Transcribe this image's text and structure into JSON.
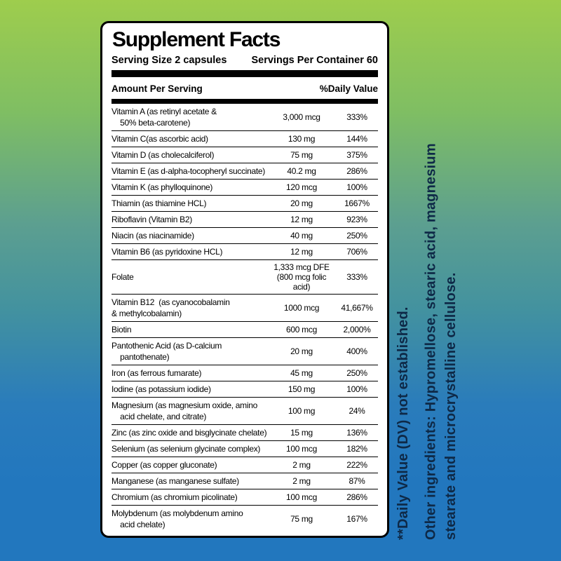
{
  "background": {
    "gradient_top_color": "#9ecd4d",
    "gradient_bottom_color": "#2277be"
  },
  "panel": {
    "title": "Supplement Facts",
    "serving_size": "Serving Size 2 capsules",
    "servings_per_container": "Servings Per Container 60",
    "amount_header": "Amount Per Serving",
    "dv_header": "%Daily Value",
    "rows": [
      {
        "name": "Vitamin A (as retinyl acetate &\n    50% beta-carotene)",
        "amount": "3,000 mcg",
        "dv": "333%"
      },
      {
        "name": "Vitamin C(as ascorbic acid)",
        "amount": "130 mg",
        "dv": "144%"
      },
      {
        "name": "Vitamin D (as cholecalciferol)",
        "amount": "75 mg",
        "dv": "375%"
      },
      {
        "name": "Vitamin E (as d-alpha-tocopheryl succinate)",
        "amount": "40.2 mg",
        "dv": "286%"
      },
      {
        "name": "Vitamin K (as phylloquinone)",
        "amount": "120 mcg",
        "dv": "100%"
      },
      {
        "name": "Thiamin (as thiamine HCL)",
        "amount": "20 mg",
        "dv": "1667%"
      },
      {
        "name": "Riboflavin (Vitamin B2)",
        "amount": "12 mg",
        "dv": "923%"
      },
      {
        "name": "Niacin (as niacinamide)",
        "amount": "40 mg",
        "dv": "250%"
      },
      {
        "name": "Vitamin B6 (as pyridoxine HCL)",
        "amount": "12 mg",
        "dv": "706%"
      },
      {
        "name": "Folate",
        "amount": "1,333 mcg DFE\n(800 mcg folic acid)",
        "dv": "333%"
      },
      {
        "name": "Vitamin B12  (as cyanocobalamin\n& methylcobalamin)",
        "amount": "1000 mcg",
        "dv": "41,667%"
      },
      {
        "name": "Biotin",
        "amount": "600 mcg",
        "dv": "2,000%"
      },
      {
        "name": "Pantothenic Acid (as D-calcium\n    pantothenate)",
        "amount": "20 mg",
        "dv": "400%"
      },
      {
        "name": "Iron (as ferrous fumarate)",
        "amount": "45 mg",
        "dv": "250%"
      },
      {
        "name": "Iodine (as potassium iodide)",
        "amount": "150 mg",
        "dv": "100%"
      },
      {
        "name": "Magnesium (as magnesium oxide, amino\n    acid chelate, and citrate)",
        "amount": "100 mg",
        "dv": "24%"
      },
      {
        "name": "Zinc (as zinc oxide and bisglycinate chelate)",
        "amount": "15 mg",
        "dv": "136%"
      },
      {
        "name": "Selenium (as selenium glycinate complex)",
        "amount": "100 mcg",
        "dv": "182%"
      },
      {
        "name": "Copper (as copper gluconate)",
        "amount": "2 mg",
        "dv": "222%"
      },
      {
        "name": "Manganese (as manganese sulfate)",
        "amount": "2 mg",
        "dv": "87%"
      },
      {
        "name": "Chromium (as chromium picolinate)",
        "amount": "100 mcg",
        "dv": "286%"
      },
      {
        "name": "Molybdenum (as molybdenum amino\n    acid chelate)",
        "amount": "75 mg",
        "dv": "167%"
      }
    ]
  },
  "side_notes": {
    "dv_note": "**Daily Value (DV) not established.",
    "other_ingredients": "Other ingredients: Hypromellose, stearic acid, magnesium\nstearate and microcrystalline cellulose.",
    "text_color": "#0e2947"
  }
}
